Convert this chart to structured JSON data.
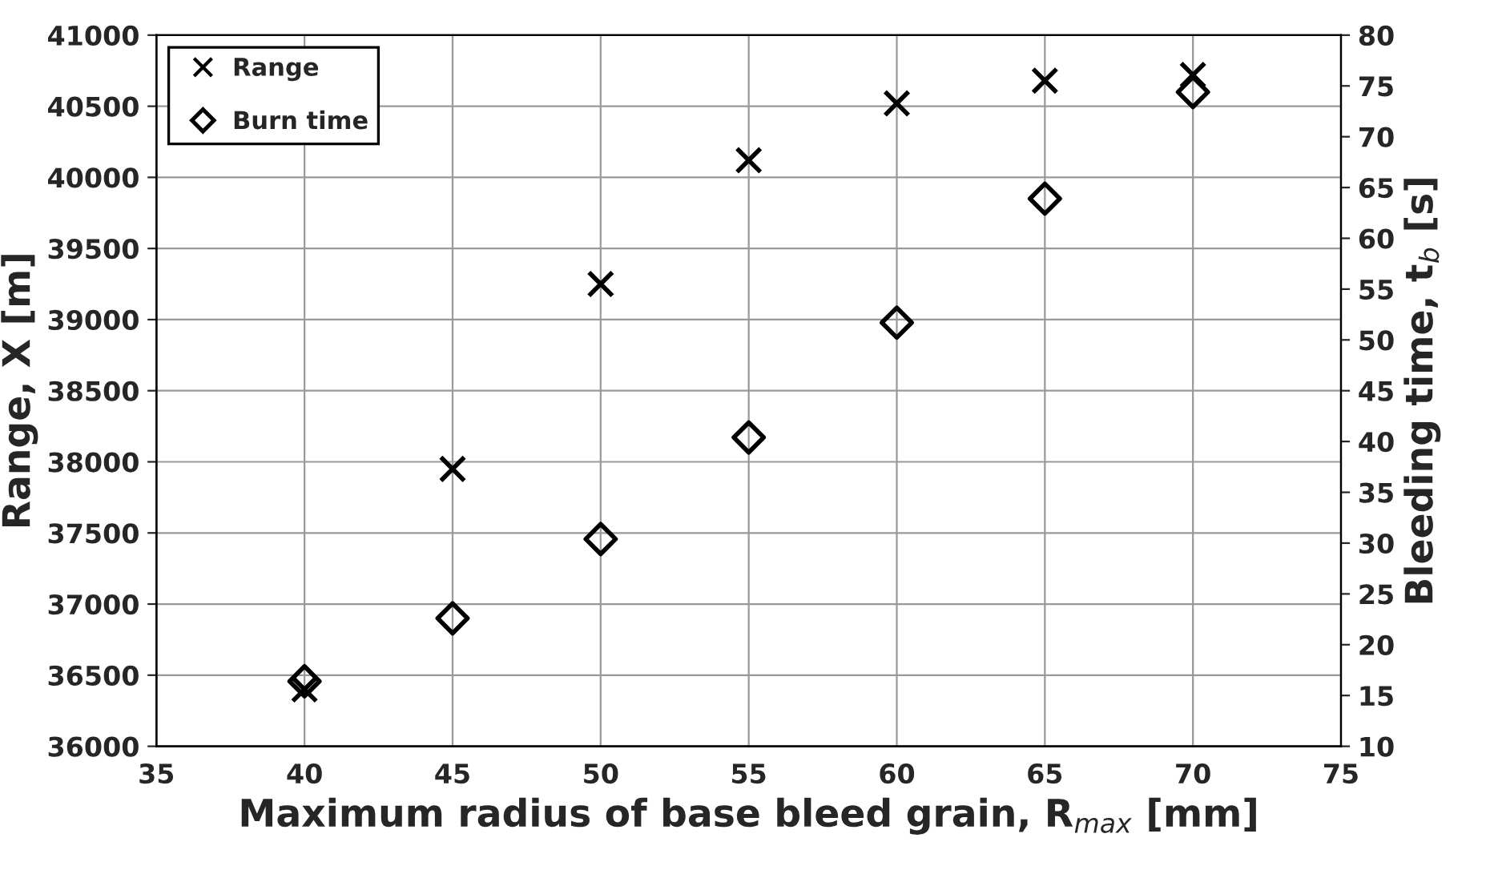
{
  "chart_data": {
    "type": "scatter",
    "xlabel": "Maximum radius of base bleed grain, R$_{max}$ [mm]",
    "ylabel": "Range, X [m]",
    "y2label": "Bleeding time, t$_{b}$ [s]",
    "x": [
      40,
      45,
      50,
      55,
      60,
      65,
      70
    ],
    "series": [
      {
        "name": "Range",
        "color": "#000000",
        "marker": "cross",
        "values": [
          36400,
          37950,
          39250,
          40120,
          40520,
          40680,
          40720
        ]
      },
      {
        "name": "Burn time",
        "color": "#000000",
        "marker": "diamond",
        "axis": "y2",
        "values": [
          16.4,
          22.6,
          30.4,
          40.4,
          51.7,
          63.9,
          74.4
        ]
      }
    ],
    "xlim": [
      35,
      75
    ],
    "xticks": [
      35,
      40,
      45,
      50,
      55,
      60,
      65,
      70,
      75
    ],
    "ylim": [
      36000,
      41000
    ],
    "yticks": [
      36000,
      36500,
      37000,
      37500,
      38000,
      38500,
      39000,
      39500,
      40000,
      40500,
      41000
    ],
    "y2lim": [
      10,
      80
    ],
    "y2ticks": [
      10,
      15,
      20,
      25,
      30,
      35,
      40,
      45,
      50,
      55,
      60,
      65,
      70,
      75,
      80
    ],
    "grid": true,
    "legend": "top left"
  }
}
